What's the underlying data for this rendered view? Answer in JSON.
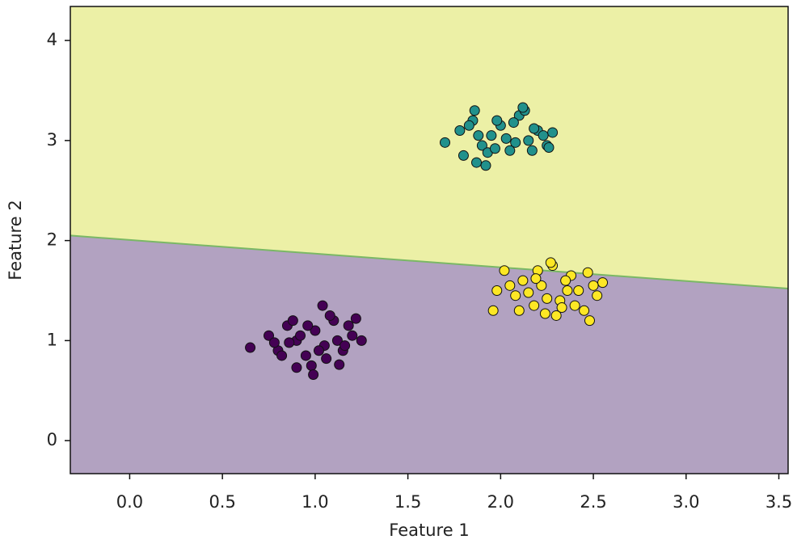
{
  "chart_data": {
    "type": "scatter",
    "x_label": "Feature 1",
    "y_label": "Feature 2",
    "xlim": [
      -0.32,
      3.55
    ],
    "ylim": [
      -0.33,
      4.34
    ],
    "xticks": [
      {
        "value": 0,
        "label": "0.0"
      },
      0.5,
      {
        "value": 1,
        "label": "1.0"
      },
      1.5,
      {
        "value": 2,
        "label": "2.0"
      },
      2.5,
      {
        "value": 3,
        "label": "3.0"
      },
      3.5
    ],
    "yticks": [
      0,
      1,
      2,
      3,
      4
    ],
    "grid": false,
    "regions": {
      "upper_color": "#ecf0a6",
      "lower_color": "#b2a2c1",
      "boundary_color": "#7ab865",
      "boundary": {
        "x": [
          -0.32,
          3.55
        ],
        "y": [
          2.05,
          1.52
        ]
      }
    },
    "series": [
      {
        "color": "#440154",
        "x": [
          0.65,
          0.75,
          0.8,
          0.85,
          0.9,
          0.95,
          1.0,
          1.05,
          1.1,
          1.15,
          1.2,
          1.25,
          0.78,
          0.88,
          0.98,
          1.08,
          1.18,
          0.82,
          0.92,
          1.02,
          1.12,
          1.22,
          0.86,
          0.96,
          1.06,
          1.16,
          0.99,
          1.04,
          0.9,
          1.13
        ],
        "values": [
          0.93,
          1.05,
          0.9,
          1.15,
          1.0,
          0.85,
          1.1,
          0.95,
          1.2,
          0.9,
          1.05,
          1.0,
          0.98,
          1.2,
          0.75,
          1.25,
          1.15,
          0.85,
          1.05,
          0.9,
          1.0,
          1.22,
          0.98,
          1.15,
          0.82,
          0.95,
          0.66,
          1.35,
          0.73,
          0.76
        ]
      },
      {
        "color": "#21918c",
        "x": [
          1.7,
          1.78,
          1.85,
          1.9,
          1.95,
          2.0,
          2.05,
          2.1,
          2.15,
          2.2,
          2.25,
          2.28,
          1.8,
          1.88,
          1.98,
          2.08,
          2.18,
          1.83,
          1.93,
          2.03,
          2.13,
          2.23,
          1.87,
          1.97,
          2.07,
          2.17,
          2.12,
          1.86,
          1.92,
          2.26
        ],
        "values": [
          2.98,
          3.1,
          3.2,
          2.95,
          3.05,
          3.15,
          2.9,
          3.25,
          3.0,
          3.1,
          2.95,
          3.08,
          2.85,
          3.05,
          3.2,
          2.98,
          3.12,
          3.15,
          2.88,
          3.02,
          3.3,
          3.05,
          2.78,
          2.92,
          3.18,
          2.9,
          3.33,
          3.3,
          2.75,
          2.93
        ]
      },
      {
        "color": "#fde725",
        "x": [
          1.96,
          1.98,
          2.02,
          2.08,
          2.12,
          2.18,
          2.22,
          2.28,
          2.32,
          2.38,
          2.42,
          2.48,
          2.52,
          2.55,
          2.1,
          2.2,
          2.3,
          2.4,
          2.5,
          2.15,
          2.25,
          2.35,
          2.45,
          2.05,
          2.27,
          2.33,
          2.47,
          2.24,
          2.36,
          2.19
        ],
        "values": [
          1.3,
          1.5,
          1.7,
          1.45,
          1.6,
          1.35,
          1.55,
          1.75,
          1.4,
          1.65,
          1.5,
          1.2,
          1.45,
          1.58,
          1.3,
          1.7,
          1.25,
          1.35,
          1.55,
          1.48,
          1.42,
          1.6,
          1.3,
          1.55,
          1.78,
          1.33,
          1.68,
          1.27,
          1.5,
          1.62
        ]
      }
    ]
  }
}
